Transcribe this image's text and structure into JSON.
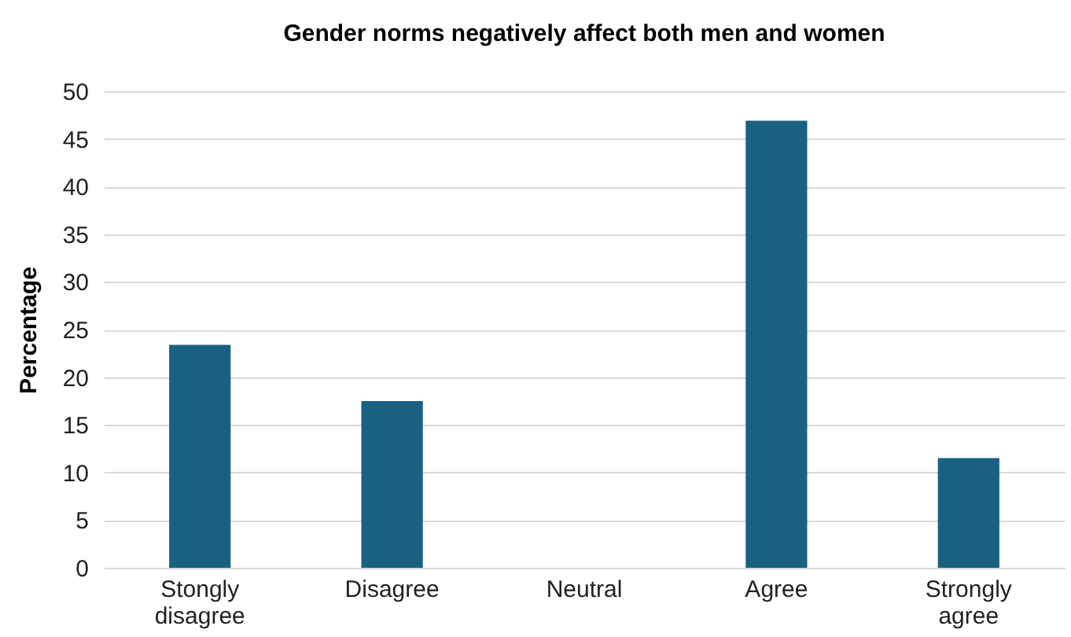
{
  "chart_data": {
    "type": "bar",
    "title": "Gender norms negatively affect both men and women",
    "ylabel": "Percentage",
    "categories": [
      "Stongly disagree",
      "Disagree",
      "Neutral",
      "Agree",
      "Strongly agree"
    ],
    "values": [
      23.4,
      17.5,
      0,
      46.9,
      11.5
    ],
    "color": "#1a6080",
    "ylim": [
      0,
      50
    ],
    "yticks": [
      0,
      5,
      10,
      15,
      20,
      25,
      30,
      35,
      40,
      45,
      50
    ],
    "grid": "y"
  }
}
